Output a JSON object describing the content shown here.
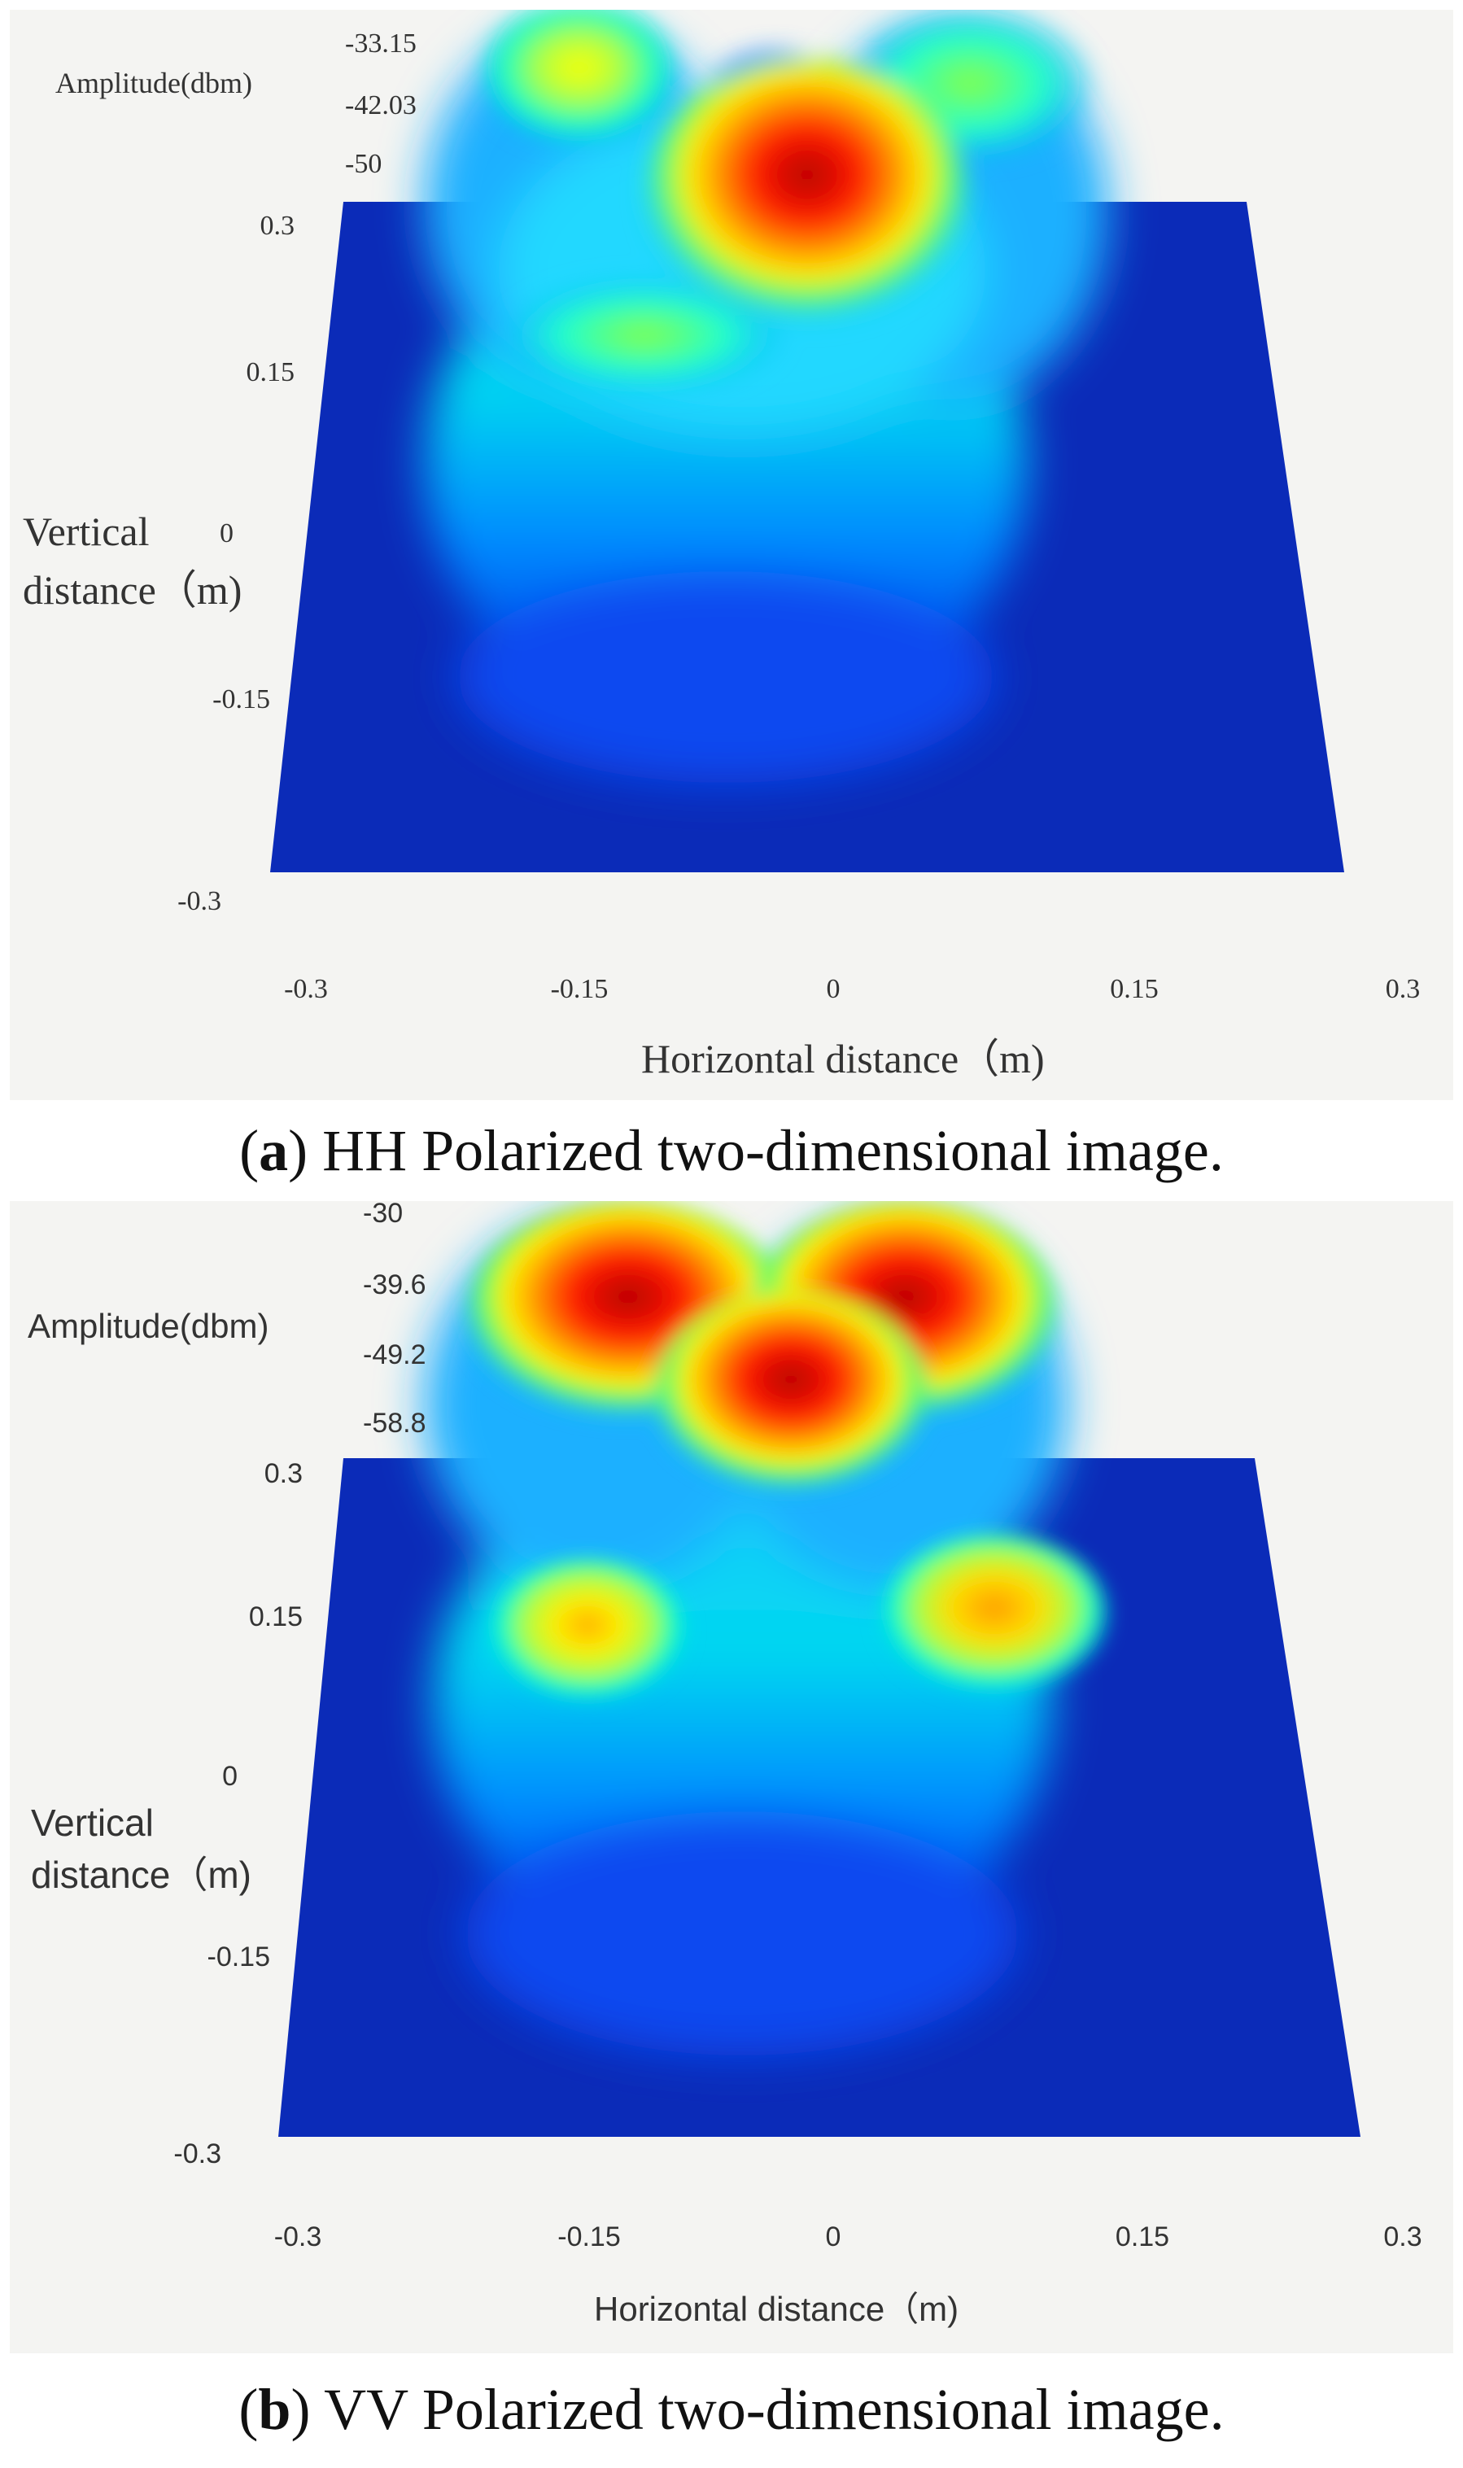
{
  "chart_data": [
    {
      "type": "surface3d",
      "panel": "a",
      "caption_label": "a",
      "caption_text": "HH Polarized two-dimensional image.",
      "zlabel": "Amplitude(dbm)",
      "ylabel_line1": "Vertical",
      "ylabel_line2": "distance（m)",
      "xlabel": "Horizontal distance（m)",
      "z_ticks": [
        "-33.15",
        "-42.03",
        "-50"
      ],
      "y_ticks": [
        "0.3",
        "0.15",
        "0",
        "-0.15",
        "-0.3"
      ],
      "x_ticks": [
        "-0.3",
        "-0.15",
        "0",
        "0.15",
        "0.3"
      ],
      "xlim": [
        -0.3,
        0.3
      ],
      "ylim": [
        -0.3,
        0.3
      ],
      "colormap": [
        "#00007f",
        "#0000ff",
        "#00bfff",
        "#00ffbf",
        "#7fff3f",
        "#ffff00",
        "#ff7f00",
        "#ff0000",
        "#bf0000"
      ],
      "peaks": [
        {
          "x": -0.03,
          "y": 0.27,
          "level": 0.95
        },
        {
          "x": -0.15,
          "y": 0.29,
          "level": 0.62
        },
        {
          "x": 0.09,
          "y": 0.29,
          "level": 0.45
        },
        {
          "x": -0.05,
          "y": 0.3,
          "level": 0.3
        }
      ]
    },
    {
      "type": "surface3d",
      "panel": "b",
      "caption_label": "b",
      "caption_text": "VV Polarized two-dimensional image.",
      "zlabel": "Amplitude(dbm)",
      "ylabel_line1": "Vertical",
      "ylabel_line2": "distance（m)",
      "xlabel": "Horizontal distance（m)",
      "z_ticks": [
        "-30",
        "-39.6",
        "-49.2",
        "-58.8"
      ],
      "y_ticks": [
        "0.3",
        "0.15",
        "0",
        "-0.15",
        "-0.3"
      ],
      "x_ticks": [
        "-0.3",
        "-0.15",
        "0",
        "0.15",
        "0.3"
      ],
      "xlim": [
        -0.3,
        0.3
      ],
      "ylim": [
        -0.3,
        0.3
      ],
      "colormap": [
        "#00007f",
        "#0000ff",
        "#00bfff",
        "#00ffbf",
        "#7fff3f",
        "#ffff00",
        "#ff7f00",
        "#ff0000",
        "#bf0000"
      ],
      "peaks": [
        {
          "x": -0.12,
          "y": 0.29,
          "level": 0.95
        },
        {
          "x": 0.05,
          "y": 0.29,
          "level": 0.9
        },
        {
          "x": -0.02,
          "y": 0.24,
          "level": 0.97
        },
        {
          "x": -0.13,
          "y": 0.17,
          "level": 0.7
        },
        {
          "x": 0.07,
          "y": 0.17,
          "level": 0.78
        }
      ]
    }
  ]
}
